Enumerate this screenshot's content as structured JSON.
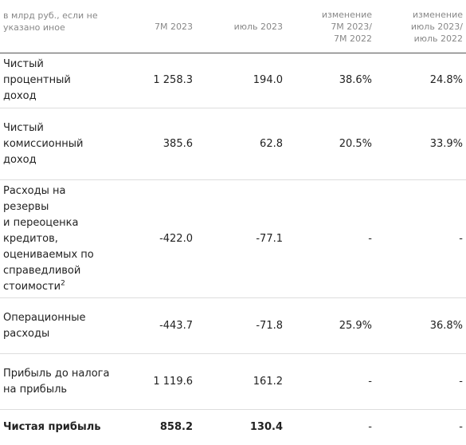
{
  "header": {
    "columns": [
      {
        "lines": [
          "в млрд руб., если не",
          "указано иное"
        ]
      },
      {
        "lines": [
          "7M 2023"
        ]
      },
      {
        "lines": [
          "июль 2023"
        ]
      },
      {
        "lines": [
          "изменение",
          "7M 2023/",
          "7M 2022"
        ]
      },
      {
        "lines": [
          "изменение",
          "июль 2023/",
          "июль 2022"
        ]
      }
    ]
  },
  "table": {
    "rows": [
      {
        "label": [
          "Чистый процентный",
          "доход"
        ],
        "cells": [
          "1 258.3",
          "194.0",
          "38.6%",
          "24.8%"
        ]
      },
      {
        "label": [
          "Чистый",
          "комиссионный",
          "доход"
        ],
        "cells": [
          "385.6",
          "62.8",
          "20.5%",
          "33.9%"
        ]
      },
      {
        "label": [
          "Расходы на резервы",
          "и переоценка",
          "кредитов,",
          "оцениваемых по",
          "справедливой",
          "стоимости"
        ],
        "note": "2",
        "cells": [
          "-422.0",
          "-77.1",
          "-",
          "-"
        ]
      },
      {
        "label": [
          "Операционные",
          "расходы"
        ],
        "cells": [
          "-443.7",
          "-71.8",
          "25.9%",
          "36.8%"
        ]
      },
      {
        "label": [
          "Прибыль до налога",
          "на прибыль"
        ],
        "cells": [
          "1 119.6",
          "161.2",
          "-",
          "-"
        ]
      },
      {
        "label": [
          "Чистая прибыль"
        ],
        "cells": [
          "858.2",
          "130.4",
          "-",
          "-"
        ]
      }
    ]
  }
}
